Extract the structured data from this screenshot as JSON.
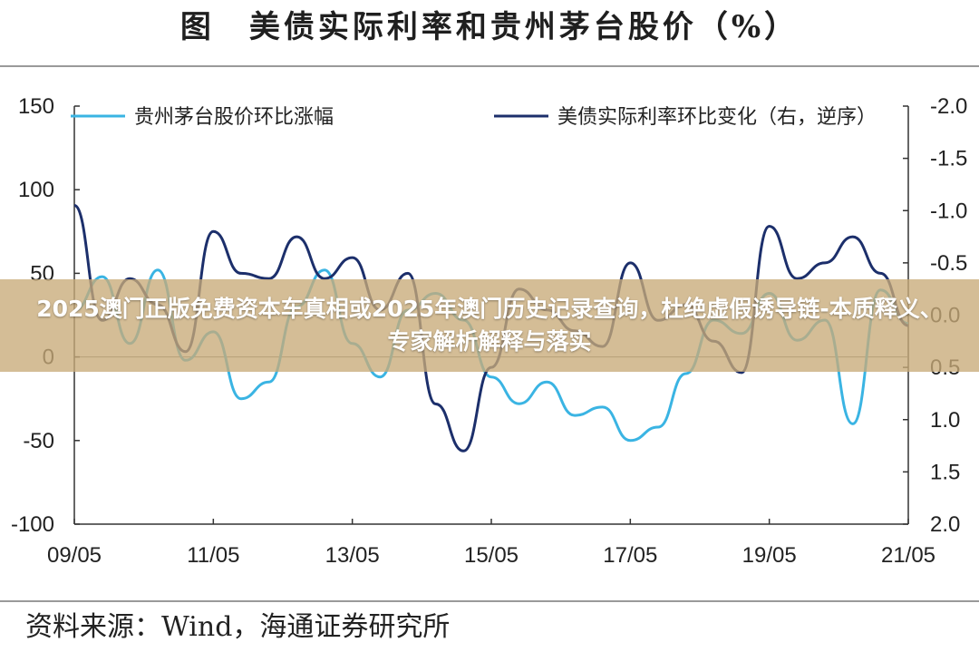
{
  "header": {
    "title": "图　美债实际利率和贵州茅台股价（%）"
  },
  "source": {
    "text": "资料来源：Wind，海通证券研究所"
  },
  "overlay": {
    "headline": "2025澳门正版免费资本车真相或2025年澳门历史记录查询，杜绝虚假诱导链-本质释义、专家解析解释与落实"
  },
  "colors": {
    "moutai": "#3ab4e3",
    "yield": "#1c2f6b",
    "axis": "#333333"
  },
  "chart_data": {
    "type": "line",
    "title": "美债实际利率和贵州茅台股价（%）",
    "x_ticks": [
      "09/05",
      "11/05",
      "13/05",
      "15/05",
      "17/05",
      "19/05",
      "21/05"
    ],
    "left_axis": {
      "ylim": [
        -100,
        150
      ],
      "ticks": [
        "150",
        "100",
        "50",
        "0",
        "-50",
        "-100"
      ]
    },
    "right_axis": {
      "ylim": [
        -2.0,
        2.0
      ],
      "inverted": true,
      "ticks": [
        "-2.0",
        "-1.5",
        "-1.0",
        "-0.5",
        "0.0",
        "0.5",
        "1.0",
        "1.5",
        "2.0"
      ]
    },
    "legend": {
      "placement": "top"
    },
    "series": [
      {
        "name": "贵州茅台股价环比涨幅",
        "axis": "left",
        "x": [
          0.0,
          0.2,
          0.4,
          0.6,
          0.8,
          1.0,
          1.2,
          1.4,
          1.6,
          1.8,
          2.0,
          2.2,
          2.4,
          2.6,
          2.8,
          3.0,
          3.2,
          3.4,
          3.6,
          3.8,
          4.0,
          4.2,
          4.4,
          4.6,
          4.8,
          5.0,
          5.2,
          5.4,
          5.6,
          5.8,
          6.0
        ],
        "values": [
          28,
          48,
          8,
          52,
          -2,
          15,
          -25,
          -15,
          30,
          52,
          8,
          -12,
          28,
          38,
          22,
          -12,
          -28,
          -15,
          -35,
          -30,
          -50,
          -42,
          -10,
          22,
          14,
          38,
          10,
          22,
          -40,
          40,
          20
        ]
      },
      {
        "name": "美债实际利率环比变化（右，逆序）",
        "axis": "right",
        "x": [
          0.0,
          0.2,
          0.4,
          0.6,
          0.8,
          1.0,
          1.2,
          1.4,
          1.6,
          1.8,
          2.0,
          2.2,
          2.4,
          2.6,
          2.8,
          3.0,
          3.2,
          3.4,
          3.6,
          3.8,
          4.0,
          4.2,
          4.4,
          4.6,
          4.8,
          5.0,
          5.2,
          5.4,
          5.6,
          5.8,
          6.0
        ],
        "values": [
          -1.05,
          0.05,
          -0.35,
          -0.1,
          0.35,
          -0.8,
          -0.4,
          -0.35,
          -0.75,
          -0.35,
          -0.55,
          -0.05,
          -0.4,
          0.85,
          1.3,
          0.5,
          -0.25,
          -0.05,
          0.15,
          0.3,
          -0.5,
          0.05,
          -0.1,
          0.25,
          0.55,
          -0.85,
          -0.35,
          -0.5,
          -0.75,
          -0.4,
          0.1
        ]
      }
    ]
  }
}
